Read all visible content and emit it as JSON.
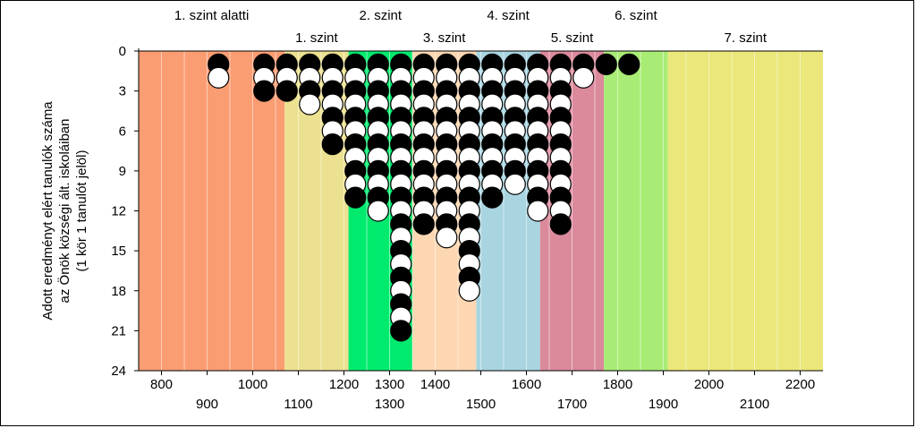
{
  "chart_data": {
    "type": "scatter",
    "title": "",
    "ylabel_lines": [
      "Adott eredményt elért tanulók száma",
      "az Önök községi ált. iskoláiban",
      "(1 kör 1 tanulót jelöl)"
    ],
    "xlim": [
      750,
      2250
    ],
    "ylim": [
      0,
      24
    ],
    "y_inverted": true,
    "x_ticks_lower": [
      800,
      1000,
      1200,
      1300,
      1400,
      1600,
      1800,
      2000,
      2200
    ],
    "x_ticks_upper": [
      900,
      1100,
      1300,
      1500,
      1700,
      1900,
      2100
    ],
    "y_ticks": [
      0,
      3,
      6,
      9,
      12,
      15,
      18,
      21,
      24
    ],
    "grid": "vertical",
    "bands": [
      {
        "label": "1. szint alatti",
        "from": 750,
        "to": 1070,
        "color": "#fa9d73",
        "label_row": "top"
      },
      {
        "label": "1. szint",
        "from": 1070,
        "to": 1210,
        "color": "#ebe190",
        "label_row": "bottom"
      },
      {
        "label": "2. szint",
        "from": 1210,
        "to": 1350,
        "color": "#00ea6e",
        "label_row": "top"
      },
      {
        "label": "3. szint",
        "from": 1350,
        "to": 1490,
        "color": "#fcd7b2",
        "label_row": "bottom"
      },
      {
        "label": "4. szint",
        "from": 1490,
        "to": 1630,
        "color": "#a9d5e1",
        "label_row": "top"
      },
      {
        "label": "5. szint",
        "from": 1630,
        "to": 1770,
        "color": "#db8a9c",
        "label_row": "bottom"
      },
      {
        "label": "6. szint",
        "from": 1770,
        "to": 1910,
        "color": "#a8ec75",
        "label_row": "top"
      },
      {
        "label": "7. szint",
        "from": 1910,
        "to": 2250,
        "color": "#ebe77a",
        "label_row": "bottom"
      }
    ],
    "columns": [
      {
        "x": 925,
        "count": 2
      },
      {
        "x": 1025,
        "count": 3
      },
      {
        "x": 1075,
        "count": 3
      },
      {
        "x": 1125,
        "count": 4
      },
      {
        "x": 1175,
        "count": 7
      },
      {
        "x": 1225,
        "count": 11
      },
      {
        "x": 1275,
        "count": 12
      },
      {
        "x": 1325,
        "count": 21
      },
      {
        "x": 1375,
        "count": 13
      },
      {
        "x": 1425,
        "count": 14
      },
      {
        "x": 1475,
        "count": 18
      },
      {
        "x": 1525,
        "count": 11
      },
      {
        "x": 1575,
        "count": 10
      },
      {
        "x": 1625,
        "count": 12
      },
      {
        "x": 1675,
        "count": 13
      },
      {
        "x": 1725,
        "count": 2
      },
      {
        "x": 1775,
        "count": 1
      },
      {
        "x": 1825,
        "count": 1
      }
    ]
  }
}
